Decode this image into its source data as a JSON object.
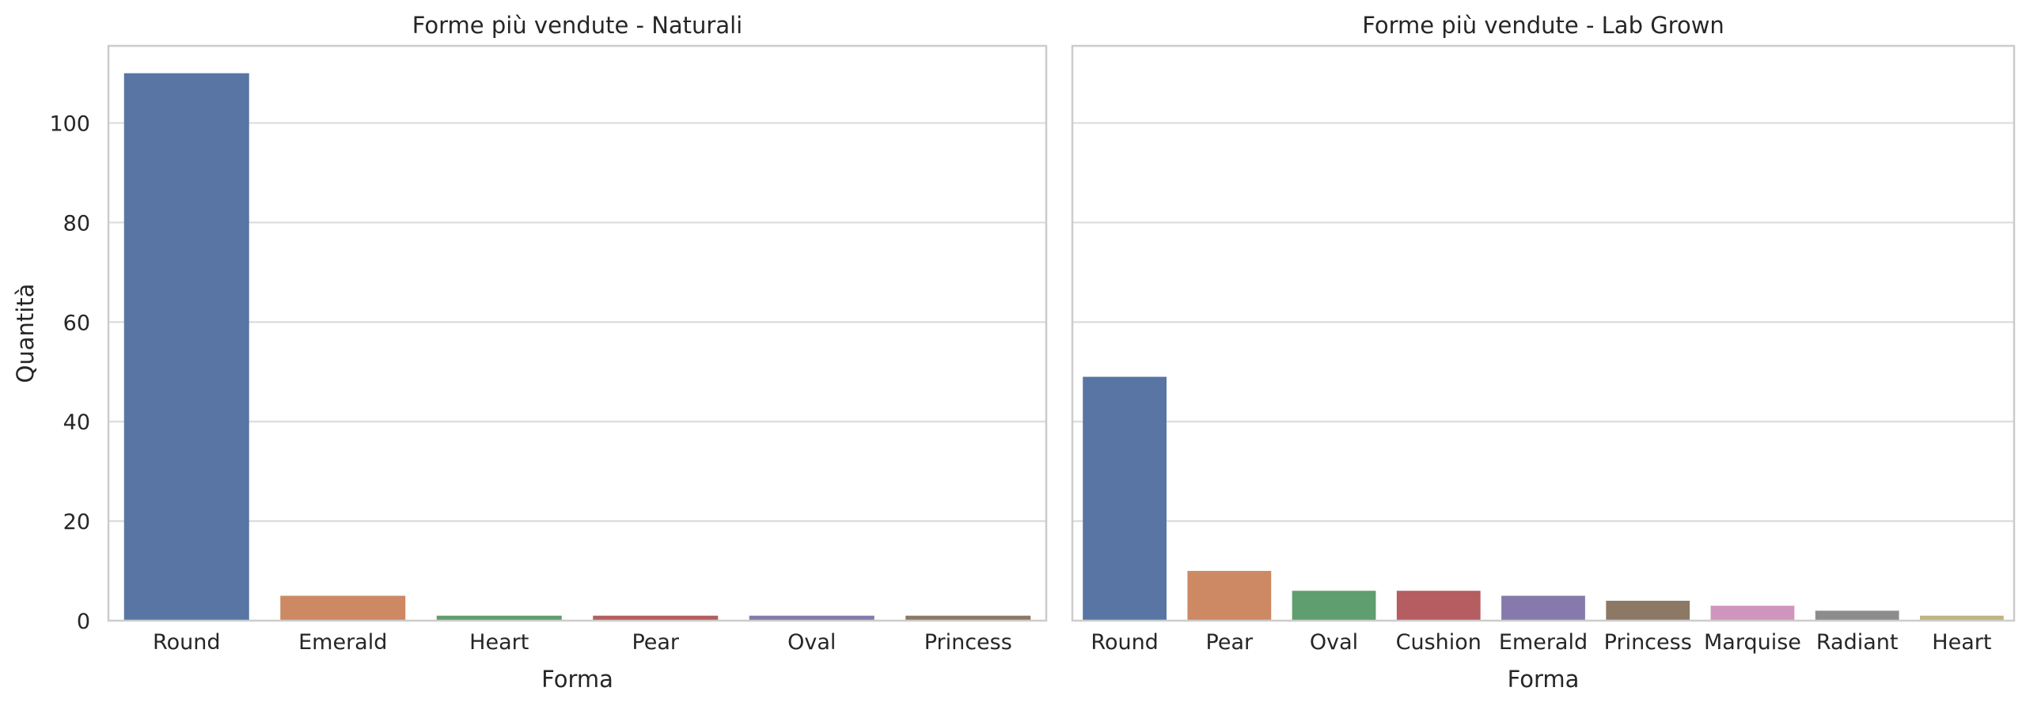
{
  "chart_data": [
    {
      "type": "bar",
      "title": "Forme più vendute - Naturali",
      "xlabel": "Forma",
      "ylabel": "Quantità",
      "categories": [
        "Round",
        "Emerald",
        "Heart",
        "Pear",
        "Oval",
        "Princess"
      ],
      "values": [
        110,
        5,
        1,
        1,
        1,
        1
      ],
      "colors": [
        "#5875a4",
        "#cc8963",
        "#5f9e6e",
        "#b55d60",
        "#857aab",
        "#8d7866"
      ],
      "ylim": [
        0,
        115.5
      ],
      "yticks": [
        "0",
        "20",
        "40",
        "60",
        "80",
        "100"
      ],
      "grid": true
    },
    {
      "type": "bar",
      "title": "Forme più vendute - Lab Grown",
      "xlabel": "Forma",
      "ylabel": "",
      "categories": [
        "Round",
        "Pear",
        "Oval",
        "Cushion",
        "Emerald",
        "Princess",
        "Marquise",
        "Radiant",
        "Heart"
      ],
      "values": [
        49,
        10,
        6,
        6,
        5,
        4,
        3,
        2,
        1
      ],
      "colors": [
        "#5875a4",
        "#cc8963",
        "#5f9e6e",
        "#b55d60",
        "#857aab",
        "#8d7866",
        "#d095bf",
        "#8c8c8c",
        "#c1b37f"
      ],
      "ylim": [
        0,
        115.5
      ],
      "grid": true
    }
  ]
}
